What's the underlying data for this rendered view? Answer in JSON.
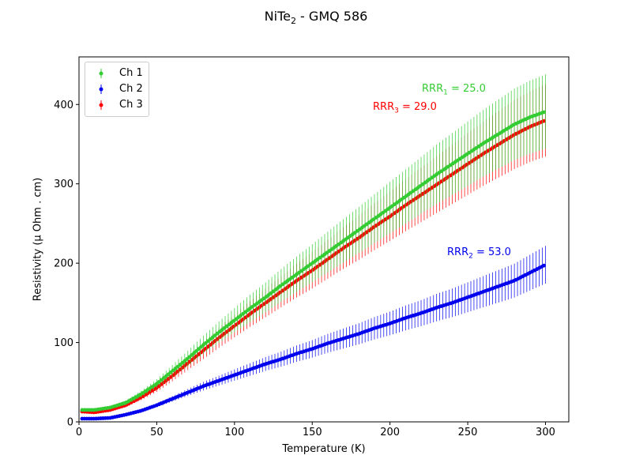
{
  "title": {
    "main": "NiTe",
    "sub": "2",
    "rest": " - GMQ 586"
  },
  "chart_data": {
    "type": "line",
    "xlabel": "Temperature (K)",
    "ylabel": "Resistivity (μ Ohm . cm)",
    "xlim": [
      0,
      315
    ],
    "ylim": [
      0,
      460
    ],
    "xticks": [
      0,
      50,
      100,
      150,
      200,
      250,
      300
    ],
    "yticks": [
      0,
      100,
      200,
      300,
      400
    ],
    "grid": false,
    "legend_position": "top-left",
    "error_bars": "vertical, about 12% of value",
    "series": [
      {
        "name": "Ch 1",
        "color": "#33cc33",
        "x": [
          2,
          10,
          20,
          30,
          40,
          50,
          60,
          70,
          80,
          90,
          100,
          110,
          120,
          130,
          140,
          150,
          160,
          170,
          180,
          190,
          200,
          210,
          220,
          230,
          240,
          250,
          260,
          270,
          280,
          290,
          300
        ],
        "y": [
          15,
          15,
          18,
          24,
          35,
          48,
          64,
          80,
          97,
          113,
          128,
          143,
          157,
          172,
          186,
          200,
          214,
          228,
          242,
          256,
          270,
          284,
          298,
          312,
          325,
          338,
          351,
          363,
          375,
          384,
          391
        ]
      },
      {
        "name": "Ch 2",
        "color": "#0000ee",
        "x": [
          2,
          10,
          20,
          30,
          40,
          50,
          60,
          70,
          80,
          90,
          100,
          110,
          120,
          130,
          140,
          150,
          160,
          170,
          180,
          190,
          200,
          210,
          220,
          230,
          240,
          250,
          260,
          270,
          280,
          290,
          300
        ],
        "y": [
          4,
          4,
          5,
          9,
          14,
          21,
          29,
          37,
          45,
          52,
          59,
          66,
          73,
          79,
          86,
          92,
          99,
          105,
          111,
          118,
          124,
          131,
          137,
          144,
          150,
          157,
          164,
          171,
          178,
          188,
          198
        ]
      },
      {
        "name": "Ch 3",
        "color": "#ff0000",
        "x": [
          2,
          10,
          20,
          30,
          40,
          50,
          60,
          70,
          80,
          90,
          100,
          110,
          120,
          130,
          140,
          150,
          160,
          170,
          180,
          190,
          200,
          210,
          220,
          230,
          240,
          250,
          260,
          270,
          280,
          290,
          300
        ],
        "y": [
          13,
          12,
          15,
          21,
          31,
          43,
          58,
          74,
          90,
          106,
          121,
          136,
          150,
          164,
          178,
          191,
          205,
          219,
          232,
          246,
          259,
          273,
          286,
          299,
          312,
          325,
          338,
          350,
          362,
          372,
          380
        ]
      }
    ],
    "annotations": [
      {
        "text": "RRR",
        "sub": "1",
        "value": " = 25.0",
        "color": "#33cc33"
      },
      {
        "text": "RRR",
        "sub": "3",
        "value": " = 29.0",
        "color": "#ff0000"
      },
      {
        "text": "RRR",
        "sub": "2",
        "value": " = 53.0",
        "color": "#0000ee"
      }
    ]
  }
}
